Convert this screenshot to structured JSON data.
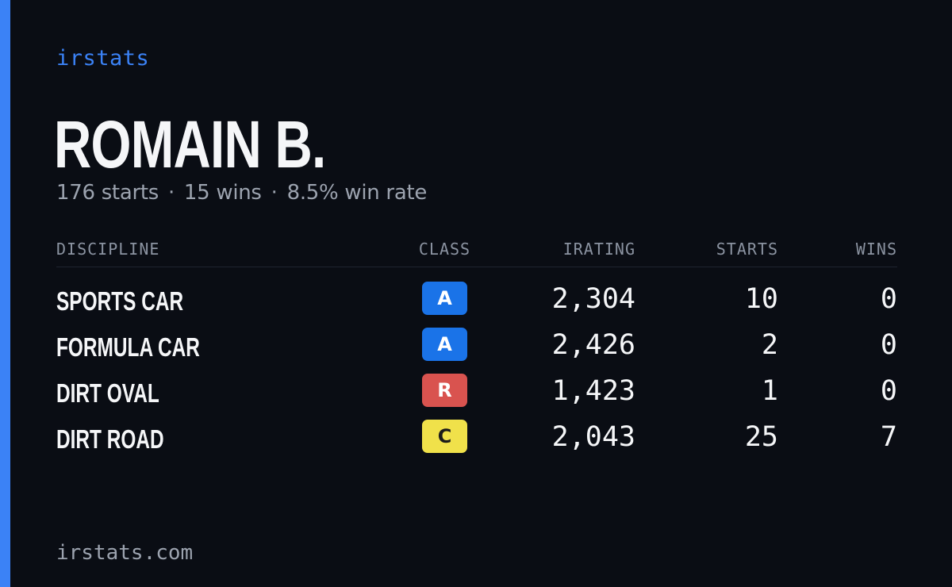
{
  "brand": "irstats",
  "driver": {
    "name": "ROMAIN B.",
    "starts_text": "176 starts",
    "separator": "·",
    "wins_text": "15 wins",
    "winrate_text": "8.5% win rate"
  },
  "table": {
    "headers": {
      "discipline": "DISCIPLINE",
      "class": "CLASS",
      "irating": "IRATING",
      "starts": "STARTS",
      "wins": "WINS"
    },
    "rows": [
      {
        "discipline": "SPORTS CAR",
        "class": "A",
        "class_color": "#1a73e8",
        "class_text_color": "#ffffff",
        "irating": "2,304",
        "starts": "10",
        "wins": "0"
      },
      {
        "discipline": "FORMULA CAR",
        "class": "A",
        "class_color": "#1a73e8",
        "class_text_color": "#ffffff",
        "irating": "2,426",
        "starts": "2",
        "wins": "0"
      },
      {
        "discipline": "DIRT OVAL",
        "class": "R",
        "class_color": "#d9534f",
        "class_text_color": "#ffffff",
        "irating": "1,423",
        "starts": "1",
        "wins": "0"
      },
      {
        "discipline": "DIRT ROAD",
        "class": "C",
        "class_color": "#f0e14a",
        "class_text_color": "#1a1a1a",
        "irating": "2,043",
        "starts": "25",
        "wins": "7"
      }
    ]
  },
  "footer": "irstats.com",
  "colors": {
    "accent": "#3b82f6",
    "background": "#0a0d14"
  }
}
